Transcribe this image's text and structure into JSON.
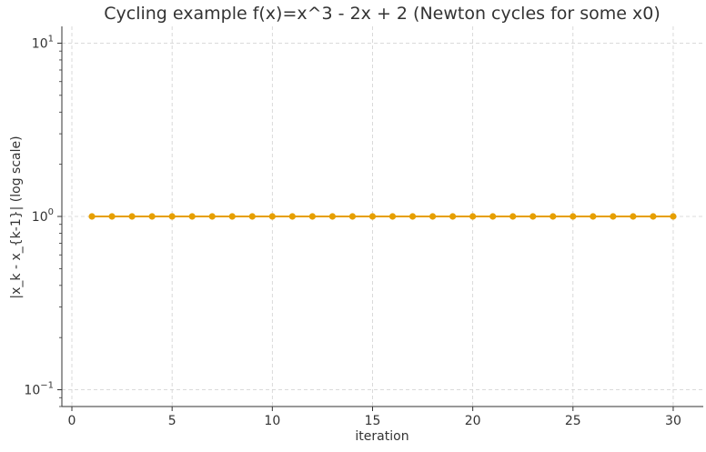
{
  "chart_data": {
    "type": "line",
    "title": "Cycling example f(x)=x^3 - 2x + 2 (Newton cycles for some x0)",
    "xlabel": "iteration",
    "ylabel": "|x_k - x_{k-1}| (log scale)",
    "xlim": [
      -0.5,
      31.5
    ],
    "ylim": [
      0.08,
      12.5
    ],
    "yscale": "log",
    "x_ticks": [
      0,
      5,
      10,
      15,
      20,
      25,
      30
    ],
    "y_ticks": [
      {
        "value": 0.1,
        "mantissa": "10",
        "exponent": "−1"
      },
      {
        "value": 1,
        "mantissa": "10",
        "exponent": "0"
      },
      {
        "value": 10,
        "mantissa": "10",
        "exponent": "1"
      }
    ],
    "grid": true,
    "series": [
      {
        "color": "#e69f00",
        "marker": "circle",
        "x": [
          1,
          2,
          3,
          4,
          5,
          6,
          7,
          8,
          9,
          10,
          11,
          12,
          13,
          14,
          15,
          16,
          17,
          18,
          19,
          20,
          21,
          22,
          23,
          24,
          25,
          26,
          27,
          28,
          29,
          30
        ],
        "values": [
          1,
          1,
          1,
          1,
          1,
          1,
          1,
          1,
          1,
          1,
          1,
          1,
          1,
          1,
          1,
          1,
          1,
          1,
          1,
          1,
          1,
          1,
          1,
          1,
          1,
          1,
          1,
          1,
          1,
          1
        ]
      }
    ]
  }
}
